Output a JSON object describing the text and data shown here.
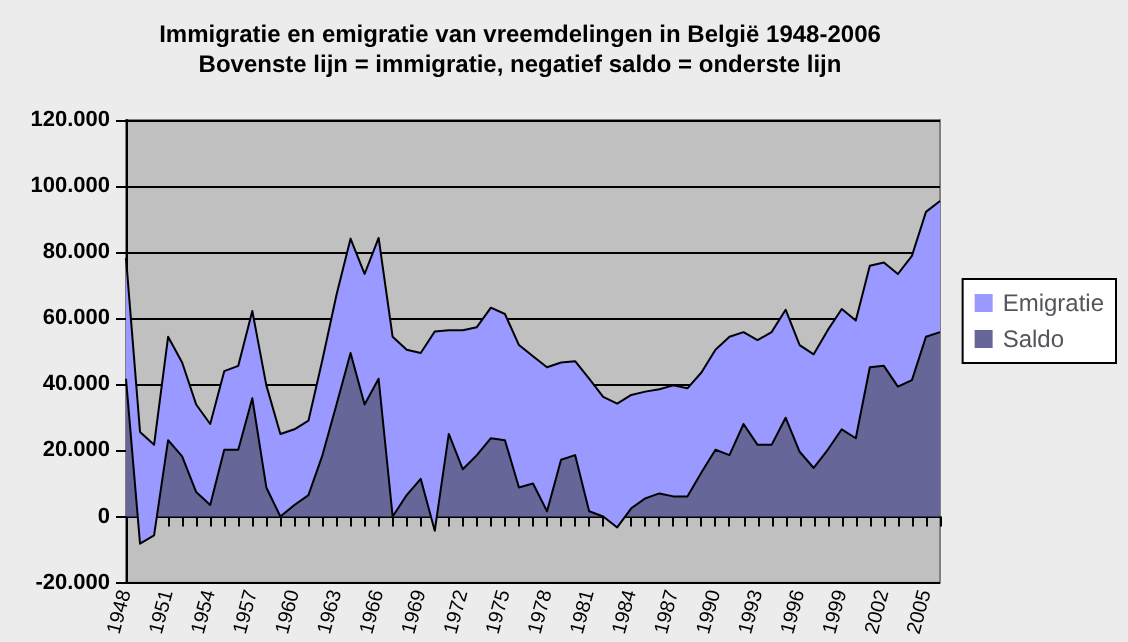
{
  "chart_data": {
    "type": "area",
    "stacked": true,
    "title": "Immigratie en emigratie van vreemdelingen in België 1948-2006",
    "subtitle": "Bovenste lijn = immigratie, negatief saldo = onderste lijn",
    "categories": [
      "1948",
      null,
      null,
      "1951",
      null,
      null,
      "1954",
      null,
      null,
      "1957",
      null,
      null,
      "1960",
      null,
      null,
      "1963",
      null,
      null,
      "1966",
      null,
      null,
      "1969",
      null,
      null,
      "1972",
      null,
      null,
      "1975",
      null,
      null,
      "1978",
      null,
      null,
      "1981",
      null,
      null,
      "1984",
      null,
      null,
      "1987",
      null,
      null,
      "1990",
      null,
      null,
      "1993",
      null,
      null,
      "1996",
      null,
      null,
      "1999",
      null,
      null,
      "2002",
      null,
      null,
      "2005",
      null
    ],
    "series": [
      {
        "name": "Saldo",
        "color": "#666699",
        "values": [
          41700,
          -8200,
          -5700,
          23100,
          18200,
          7400,
          3500,
          20200,
          20200,
          35800,
          8800,
          0,
          3500,
          6500,
          18600,
          33900,
          49500,
          33900,
          41700,
          0,
          6500,
          11400,
          -4300,
          25000,
          14300,
          18600,
          23700,
          23100,
          8800,
          10000,
          1600,
          17200,
          18600,
          1600,
          0,
          -3300,
          2500,
          5500,
          7000,
          6100,
          6100,
          13300,
          20200,
          18600,
          28000,
          21700,
          21700,
          29900,
          19600,
          14700,
          20200,
          26400,
          23700,
          45200,
          45600,
          39300,
          41300,
          54400,
          55800
        ]
      },
      {
        "name": "Emigratie",
        "color": "#9999ff",
        "values": [
          36600,
          33800,
          27400,
          31300,
          28400,
          26500,
          24500,
          23800,
          25400,
          26400,
          30900,
          25000,
          22900,
          22500,
          28900,
          33200,
          34600,
          39500,
          42600,
          54400,
          44000,
          38100,
          60300,
          31400,
          42100,
          38700,
          39500,
          38200,
          43100,
          38500,
          43600,
          29400,
          28400,
          40100,
          36200,
          37500,
          34300,
          32300,
          31500,
          33600,
          32700,
          30300,
          30300,
          35800,
          27800,
          31700,
          34100,
          32700,
          32300,
          34400,
          36200,
          36400,
          35600,
          30700,
          31300,
          34100,
          37600,
          37800,
          39700
        ]
      }
    ],
    "ylim": [
      -20000,
      120000
    ],
    "yticks": [
      {
        "value": -20000,
        "label": "-20.000"
      },
      0,
      {
        "value": 20000,
        "label": "20.000"
      },
      {
        "value": 40000,
        "label": "40.000"
      },
      {
        "value": 60000,
        "label": "60.000"
      },
      {
        "value": 80000,
        "label": "80.000"
      },
      {
        "value": 100000,
        "label": "100.000"
      },
      {
        "value": 120000,
        "label": "120.000"
      }
    ],
    "grid": "y",
    "legend": "right"
  }
}
